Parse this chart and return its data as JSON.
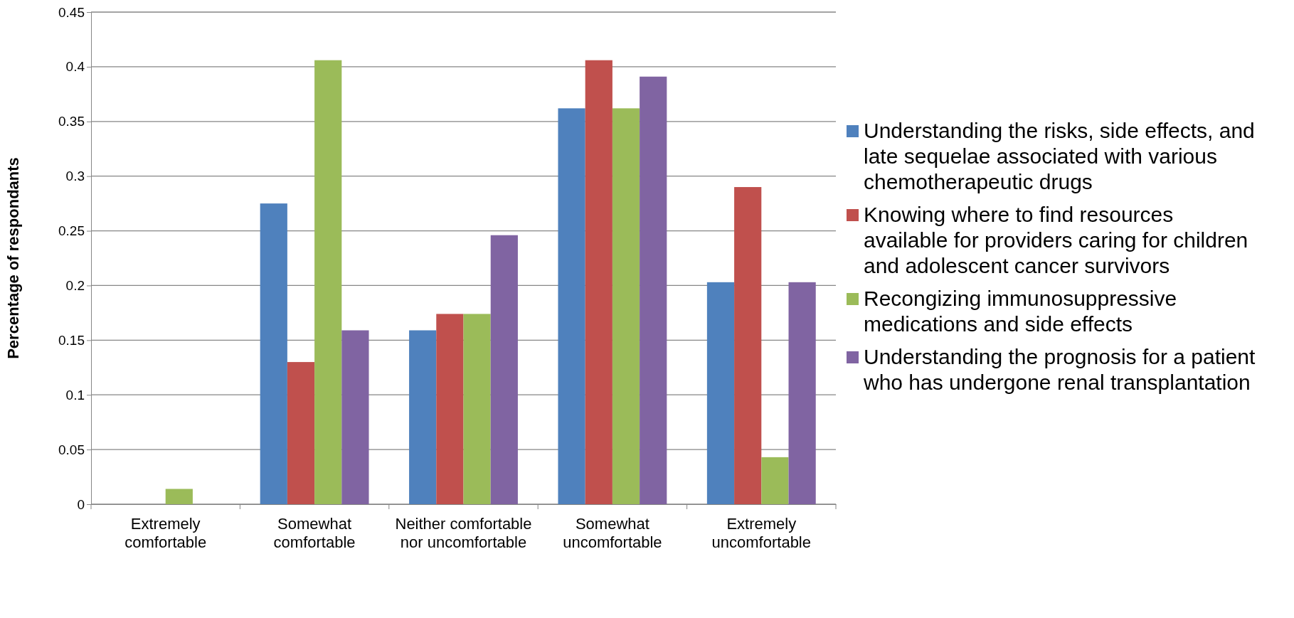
{
  "chart_data": {
    "type": "bar",
    "ylabel": "Percentage of respondants",
    "categories": [
      "Extremely comfortable",
      "Somewhat comfortable",
      "Neither comfortable nor uncomfortable",
      "Somewhat uncomfortable",
      "Extremely uncomfortable"
    ],
    "series": [
      {
        "name": "Understanding the risks, side effects, and late sequelae associated with various chemotherapeutic drugs",
        "color": "#4f81bd",
        "values": [
          0,
          0.275,
          0.159,
          0.362,
          0.203
        ]
      },
      {
        "name": "Knowing where to find resources available for providers caring for children and adolescent cancer survivors",
        "color": "#c0504d",
        "values": [
          0,
          0.13,
          0.174,
          0.406,
          0.29
        ]
      },
      {
        "name": "Recongizing immunosuppressive medications and side effects",
        "color": "#9bbb59",
        "values": [
          0.014,
          0.406,
          0.174,
          0.362,
          0.043
        ]
      },
      {
        "name": "Understanding the prognosis for a patient who has undergone renal transplantation",
        "color": "#8064a2",
        "values": [
          0,
          0.159,
          0.246,
          0.391,
          0.203
        ]
      }
    ],
    "ylim": [
      0,
      0.45
    ],
    "yticks": [
      0,
      0.05,
      0.1,
      0.15,
      0.2,
      0.25,
      0.3,
      0.35,
      0.4,
      0.45
    ],
    "grid": "y",
    "legend": "right"
  }
}
